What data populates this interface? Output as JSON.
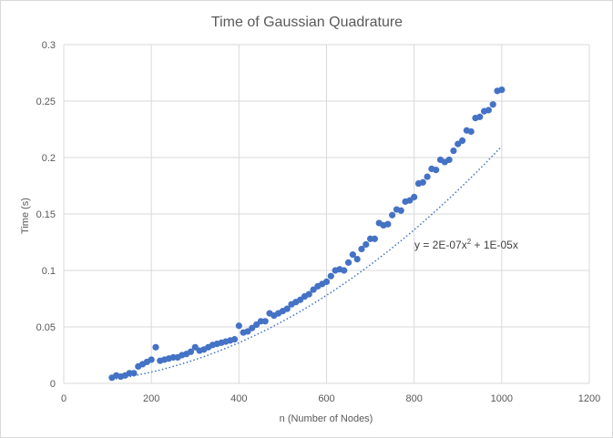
{
  "chart_data": {
    "type": "scatter",
    "title": "Time of Gaussian Quadrature",
    "xlabel": "n (Number  of Nodes)",
    "ylabel": "Time (s)",
    "xlim": [
      0,
      1200
    ],
    "ylim": [
      0,
      0.3
    ],
    "x_ticks": [
      0,
      200,
      400,
      600,
      800,
      1000,
      1200
    ],
    "y_ticks": [
      0,
      0.05,
      0.1,
      0.15,
      0.2,
      0.25,
      0.3
    ],
    "x_tick_labels": [
      "0",
      "200",
      "400",
      "600",
      "800",
      "1000",
      "1200"
    ],
    "y_tick_labels": [
      "0",
      "0.05",
      "0.1",
      "0.15",
      "0.2",
      "0.25",
      "0.3"
    ],
    "grid": true,
    "series": [
      {
        "color": "#4472c4",
        "x": [
          110,
          120,
          130,
          140,
          150,
          160,
          170,
          180,
          190,
          200,
          210,
          220,
          230,
          240,
          250,
          260,
          270,
          280,
          290,
          300,
          310,
          320,
          330,
          340,
          350,
          360,
          370,
          380,
          390,
          400,
          410,
          420,
          430,
          440,
          450,
          460,
          470,
          480,
          490,
          500,
          510,
          520,
          530,
          540,
          550,
          560,
          570,
          580,
          590,
          600,
          610,
          620,
          630,
          640,
          650,
          660,
          670,
          680,
          690,
          700,
          710,
          720,
          730,
          740,
          750,
          760,
          770,
          780,
          790,
          800,
          810,
          820,
          830,
          840,
          850,
          860,
          870,
          880,
          890,
          900,
          910,
          920,
          930,
          940,
          950,
          960,
          970,
          980,
          990,
          1000
        ],
        "y": [
          0.005,
          0.007,
          0.006,
          0.007,
          0.009,
          0.009,
          0.015,
          0.017,
          0.019,
          0.021,
          0.032,
          0.02,
          0.021,
          0.022,
          0.023,
          0.023,
          0.025,
          0.026,
          0.028,
          0.032,
          0.029,
          0.03,
          0.032,
          0.034,
          0.035,
          0.036,
          0.037,
          0.038,
          0.039,
          0.051,
          0.045,
          0.046,
          0.049,
          0.052,
          0.055,
          0.055,
          0.062,
          0.06,
          0.062,
          0.064,
          0.066,
          0.07,
          0.072,
          0.074,
          0.077,
          0.079,
          0.083,
          0.086,
          0.088,
          0.09,
          0.095,
          0.1,
          0.101,
          0.1,
          0.107,
          0.114,
          0.11,
          0.119,
          0.123,
          0.128,
          0.128,
          0.142,
          0.14,
          0.141,
          0.149,
          0.154,
          0.153,
          0.161,
          0.162,
          0.165,
          0.177,
          0.178,
          0.183,
          0.19,
          0.189,
          0.198,
          0.196,
          0.198,
          0.206,
          0.212,
          0.215,
          0.224,
          0.223,
          0.235,
          0.236,
          0.241,
          0.242,
          0.247,
          0.259,
          0.26
        ]
      }
    ],
    "trendline": {
      "type": "polynomial",
      "style": "dotted",
      "color": "#4472c4",
      "a": 2e-07,
      "b": 1e-05,
      "x_range": [
        110,
        1000
      ],
      "equation_prefix": "y = 2E-07x",
      "equation_sup": "2",
      "equation_suffix": " + 1E-05x"
    }
  }
}
